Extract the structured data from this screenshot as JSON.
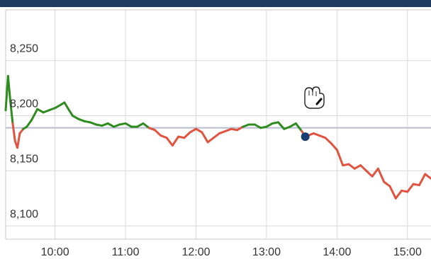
{
  "header": {
    "bar_color": "#1e3a5f"
  },
  "chart_data": {
    "type": "line",
    "title": "",
    "xlabel": "",
    "ylabel": "",
    "x_ticks": [
      "10:00",
      "11:00",
      "12:00",
      "13:00",
      "14:00",
      "15:00"
    ],
    "y_ticks": [
      "8,100",
      "8,150",
      "8,200",
      "8,250"
    ],
    "xlim": [
      "09:18",
      "15:20"
    ],
    "ylim": [
      8088,
      8296
    ],
    "grid": true,
    "reference_level": 8189,
    "colors": {
      "above_reference": "#2e8b1e",
      "below_reference": "#e0533f",
      "reference_line": "#b7bccf",
      "current_marker": "#1a3d73"
    },
    "current_point": {
      "x": "13:33",
      "y": 8181
    },
    "cursor_icon": "grab-hand-icon",
    "series": [
      {
        "x": [
          "09:18",
          "09:20",
          "09:22",
          "09:24",
          "09:26",
          "09:28",
          "09:30",
          "09:33",
          "09:36",
          "09:40",
          "09:45",
          "09:50",
          "09:55",
          "10:00",
          "10:05",
          "10:08",
          "10:12",
          "10:15",
          "10:20",
          "10:25",
          "10:30",
          "10:35",
          "10:40",
          "10:45",
          "10:50",
          "10:55",
          "11:00",
          "11:05",
          "11:10",
          "11:15",
          "11:20",
          "11:25",
          "11:30",
          "11:35",
          "11:40",
          "11:45",
          "11:50",
          "11:55",
          "12:00",
          "12:05",
          "12:10",
          "12:15",
          "12:20",
          "12:25",
          "12:30",
          "12:35",
          "12:40",
          "12:45",
          "12:50",
          "12:55",
          "13:00",
          "13:05",
          "13:10",
          "13:15",
          "13:20",
          "13:25",
          "13:30",
          "13:33",
          "13:40",
          "13:45",
          "13:50",
          "13:55",
          "14:00",
          "14:05",
          "14:10",
          "14:15",
          "14:20",
          "14:25",
          "14:30",
          "14:35",
          "14:40",
          "14:45",
          "14:50",
          "14:55",
          "15:00",
          "15:05",
          "15:10",
          "15:15",
          "15:20"
        ],
        "values": [
          8205,
          8236,
          8213,
          8193,
          8177,
          8171,
          8184,
          8188,
          8190,
          8196,
          8206,
          8203,
          8205,
          8207,
          8210,
          8212,
          8205,
          8200,
          8197,
          8195,
          8194,
          8192,
          8191,
          8193,
          8190,
          8192,
          8193,
          8190,
          8190,
          8193,
          8189,
          8187,
          8182,
          8180,
          8173,
          8181,
          8180,
          8185,
          8188,
          8185,
          8176,
          8180,
          8184,
          8186,
          8188,
          8187,
          8190,
          8192,
          8192,
          8189,
          8190,
          8193,
          8194,
          8188,
          8190,
          8193,
          8186,
          8181,
          8184,
          8182,
          8180,
          8175,
          8169,
          8155,
          8156,
          8152,
          8155,
          8150,
          8145,
          8152,
          8140,
          8136,
          8125,
          8132,
          8131,
          8138,
          8137,
          8147,
          8143
        ]
      }
    ]
  }
}
